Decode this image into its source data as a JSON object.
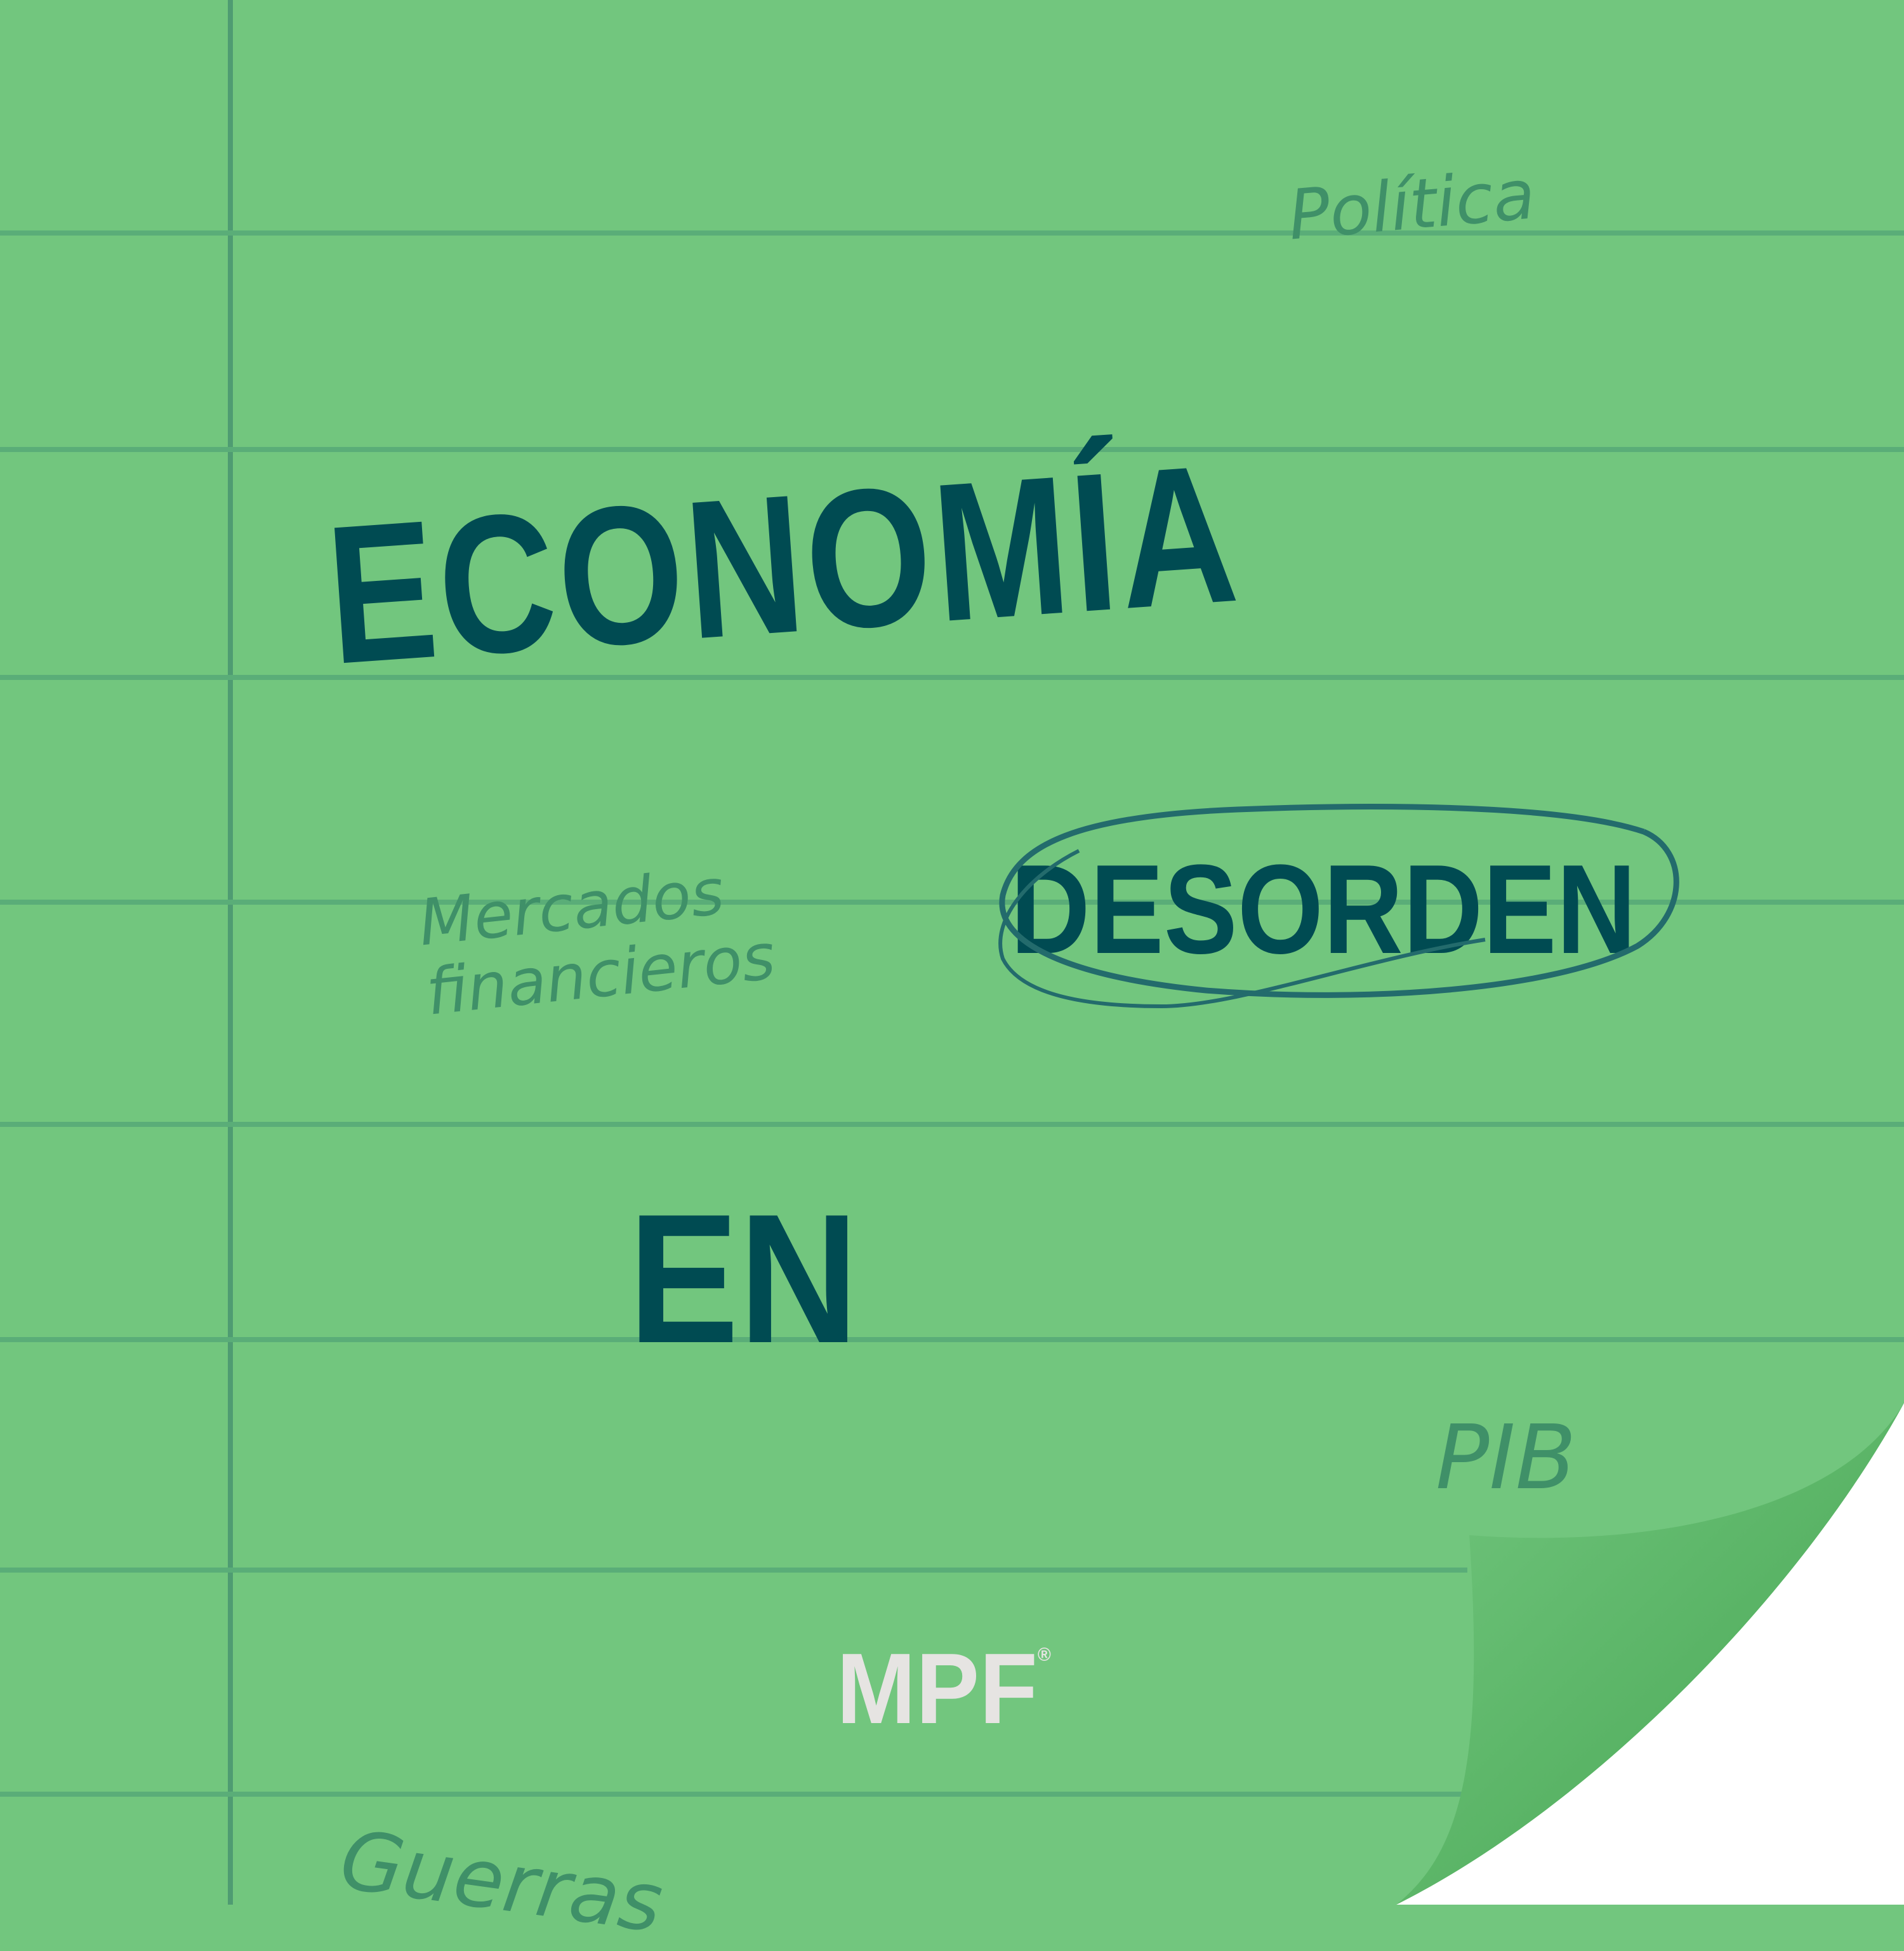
{
  "notebook": {
    "keywords": {
      "politica": "Política",
      "mercados_line1": "Mercados",
      "mercados_line2": "financieros",
      "pib": "PIB",
      "guerras": "Guerras"
    },
    "headline": {
      "line1": "ECONOMÍA",
      "line2": "DESORDEN",
      "line3": "EN"
    },
    "logo": {
      "text": "MPF",
      "mark": "®"
    }
  },
  "colors": {
    "paper": "#72c67e",
    "rule_line": "#5aad78",
    "headline": "#004b52",
    "keyword": "#3f9068",
    "circle_stroke": "#236b6c",
    "logo": "#e6e4e2",
    "curl_dark": "#3da84a"
  }
}
